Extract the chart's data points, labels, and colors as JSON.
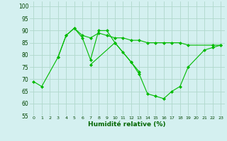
{
  "xlabel": "Humidité relative (%)",
  "xlim": [
    -0.5,
    23.5
  ],
  "ylim": [
    55,
    102
  ],
  "yticks": [
    55,
    60,
    65,
    70,
    75,
    80,
    85,
    90,
    95,
    100
  ],
  "xticks": [
    0,
    1,
    2,
    3,
    4,
    5,
    6,
    7,
    8,
    9,
    10,
    11,
    12,
    13,
    14,
    15,
    16,
    17,
    18,
    19,
    20,
    21,
    22,
    23
  ],
  "background_color": "#d4f0f0",
  "grid_color": "#b0d8cc",
  "line_color": "#00bb00",
  "series1_x": [
    0,
    1,
    3,
    4,
    5,
    6,
    7,
    8,
    9,
    10,
    11,
    12,
    13
  ],
  "series1_y": [
    69,
    67,
    79,
    88,
    91,
    87,
    78,
    90,
    90,
    85,
    81,
    77,
    73
  ],
  "series2_x": [
    3,
    4,
    5,
    6,
    7,
    8,
    9,
    10,
    11,
    12,
    13,
    14,
    15,
    16,
    17,
    18,
    19,
    22,
    23
  ],
  "series2_y": [
    79,
    88,
    91,
    88,
    87,
    89,
    88,
    87,
    87,
    86,
    86,
    85,
    85,
    85,
    85,
    85,
    84,
    84,
    84
  ],
  "series3_x": [
    7,
    10,
    12,
    13,
    14,
    15,
    16,
    17,
    18,
    19,
    21,
    22,
    23
  ],
  "series3_y": [
    76,
    85,
    77,
    72,
    64,
    63,
    62,
    65,
    67,
    75,
    82,
    83,
    84
  ]
}
